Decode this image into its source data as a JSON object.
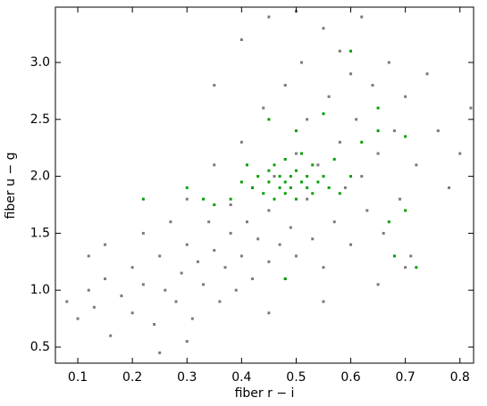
{
  "chart_data": {
    "type": "scatter",
    "x_label": "fiber r − i",
    "y_label": "fiber u − g",
    "xlim": [
      0.059,
      0.825
    ],
    "ylim": [
      0.359,
      3.486
    ],
    "xticks": [
      0.1,
      0.2,
      0.3,
      0.4,
      0.5,
      0.6,
      0.7,
      0.8
    ],
    "yticks": [
      {
        "value": 0.5,
        "label": "0.5"
      },
      {
        "value": 1,
        "label": "1.0"
      },
      {
        "value": 1.5,
        "label": "1.5"
      },
      {
        "value": 2,
        "label": "2.0"
      },
      {
        "value": 2.5,
        "label": "2.5"
      },
      {
        "value": 3,
        "label": "3.0"
      }
    ],
    "series": [
      {
        "color": "#7a7a7a",
        "x": [
          0.08,
          0.1,
          0.12,
          0.13,
          0.15,
          0.16,
          0.18,
          0.2,
          0.2,
          0.22,
          0.22,
          0.24,
          0.25,
          0.26,
          0.27,
          0.28,
          0.29,
          0.3,
          0.3,
          0.31,
          0.32,
          0.33,
          0.34,
          0.35,
          0.35,
          0.36,
          0.37,
          0.38,
          0.38,
          0.39,
          0.4,
          0.4,
          0.41,
          0.42,
          0.42,
          0.43,
          0.44,
          0.45,
          0.45,
          0.46,
          0.47,
          0.48,
          0.48,
          0.49,
          0.5,
          0.5,
          0.51,
          0.52,
          0.52,
          0.53,
          0.54,
          0.55,
          0.55,
          0.56,
          0.57,
          0.58,
          0.58,
          0.59,
          0.6,
          0.6,
          0.61,
          0.62,
          0.62,
          0.63,
          0.64,
          0.65,
          0.66,
          0.67,
          0.68,
          0.69,
          0.7,
          0.71,
          0.72,
          0.74,
          0.76,
          0.78,
          0.8,
          0.82,
          0.3,
          0.25,
          0.45,
          0.55,
          0.65,
          0.7,
          0.15,
          0.12,
          0.4,
          0.35,
          0.45,
          0.5
        ],
        "y": [
          0.9,
          0.75,
          1.0,
          0.85,
          1.1,
          0.6,
          0.95,
          1.2,
          0.8,
          1.05,
          1.5,
          0.7,
          1.3,
          1.0,
          1.6,
          0.9,
          1.15,
          1.4,
          1.8,
          0.75,
          1.25,
          1.05,
          1.6,
          1.35,
          2.1,
          0.9,
          1.2,
          1.5,
          1.75,
          1.0,
          1.3,
          2.3,
          1.6,
          1.1,
          1.9,
          1.45,
          2.6,
          1.25,
          1.7,
          2.0,
          1.4,
          2.8,
          1.1,
          1.55,
          2.2,
          1.3,
          3.0,
          1.8,
          2.5,
          1.45,
          2.1,
          3.3,
          1.2,
          2.7,
          1.6,
          2.3,
          3.1,
          1.9,
          2.9,
          1.4,
          2.5,
          3.4,
          2.0,
          1.7,
          2.8,
          2.2,
          1.5,
          3.0,
          2.4,
          1.8,
          2.7,
          1.3,
          2.1,
          2.9,
          2.4,
          1.9,
          2.2,
          2.6,
          0.55,
          0.45,
          0.8,
          0.9,
          1.05,
          1.2,
          1.4,
          1.3,
          3.2,
          2.8,
          3.4,
          3.45
        ]
      },
      {
        "color": "#00a000",
        "x": [
          0.42,
          0.43,
          0.44,
          0.45,
          0.45,
          0.46,
          0.46,
          0.47,
          0.47,
          0.48,
          0.48,
          0.48,
          0.49,
          0.49,
          0.5,
          0.5,
          0.51,
          0.51,
          0.52,
          0.52,
          0.53,
          0.53,
          0.54,
          0.55,
          0.56,
          0.4,
          0.41,
          0.57,
          0.58,
          0.38,
          0.6,
          0.62,
          0.65,
          0.3,
          0.35,
          0.67,
          0.7,
          0.72,
          0.55,
          0.6,
          0.5,
          0.48,
          0.45,
          0.65,
          0.7,
          0.22,
          0.33,
          0.68
        ],
        "y": [
          1.9,
          2.0,
          1.85,
          2.05,
          1.95,
          1.8,
          2.1,
          1.9,
          2.0,
          1.95,
          2.15,
          1.85,
          2.0,
          1.9,
          2.05,
          1.8,
          1.95,
          2.2,
          1.9,
          2.0,
          1.85,
          2.1,
          1.95,
          2.0,
          1.9,
          1.95,
          2.1,
          2.15,
          1.85,
          1.8,
          2.0,
          2.3,
          2.6,
          1.9,
          1.75,
          1.6,
          1.7,
          1.2,
          2.55,
          3.1,
          2.4,
          1.1,
          2.5,
          2.4,
          2.35,
          1.8,
          1.8,
          1.3
        ]
      }
    ]
  }
}
